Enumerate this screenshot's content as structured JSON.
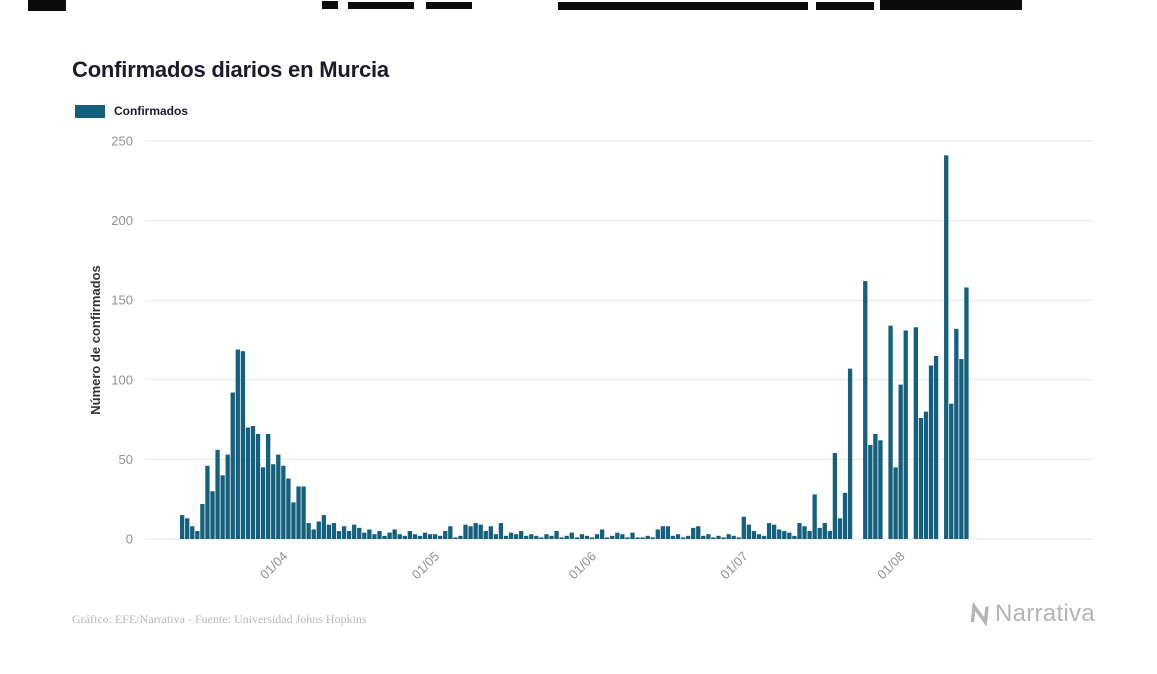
{
  "page": {
    "title": "Confirmados diarios en Murcia",
    "footer": "Gráfico: EFE/Narrativa - Fuente: Universidad Johns Hopkins",
    "brand": "Narrativa"
  },
  "legend": {
    "label": "Confirmados",
    "color": "#15607d"
  },
  "chart_data": {
    "type": "bar",
    "title": "Confirmados diarios en Murcia",
    "series_name": "Confirmados",
    "xlabel": "",
    "ylabel": "Número de confirmados",
    "ylim": [
      0,
      250
    ],
    "y_ticks": [
      0,
      50,
      100,
      150,
      200,
      250
    ],
    "grid": true,
    "legend_position": "top-left",
    "bar_color": "#15607d",
    "grid_color": "#e7e7e7",
    "tick_color": "#929292",
    "x_ticks": [
      {
        "label": "01/04",
        "index": 20
      },
      {
        "label": "01/05",
        "index": 50
      },
      {
        "label": "01/06",
        "index": 81
      },
      {
        "label": "01/07",
        "index": 111
      },
      {
        "label": "01/08",
        "index": 142
      }
    ],
    "values": [
      15,
      13,
      8,
      5,
      22,
      46,
      30,
      56,
      40,
      53,
      92,
      119,
      118,
      70,
      71,
      66,
      45,
      66,
      47,
      53,
      46,
      38,
      23,
      33,
      33,
      10,
      6,
      11,
      15,
      9,
      10,
      5,
      8,
      5,
      9,
      7,
      4,
      6,
      3,
      5,
      2,
      4,
      6,
      3,
      2,
      5,
      3,
      2,
      4,
      3,
      3,
      2,
      5,
      8,
      1,
      2,
      9,
      8,
      10,
      9,
      5,
      8,
      3,
      10,
      2,
      4,
      3,
      5,
      2,
      3,
      2,
      1,
      3,
      2,
      5,
      1,
      2,
      4,
      1,
      3,
      2,
      1,
      3,
      6,
      1,
      2,
      4,
      3,
      1,
      4,
      1,
      1,
      2,
      1,
      6,
      8,
      8,
      2,
      3,
      1,
      2,
      7,
      8,
      2,
      3,
      1,
      2,
      1,
      3,
      2,
      1,
      14,
      9,
      5,
      3,
      2,
      10,
      9,
      6,
      5,
      4,
      2,
      10,
      8,
      5,
      28,
      7,
      10,
      5,
      54,
      13,
      29,
      107,
      0,
      0,
      162,
      59,
      66,
      62,
      0,
      134,
      45,
      97,
      131,
      0,
      133,
      76,
      80,
      109,
      115,
      0,
      241,
      85,
      132,
      113,
      158
    ]
  }
}
